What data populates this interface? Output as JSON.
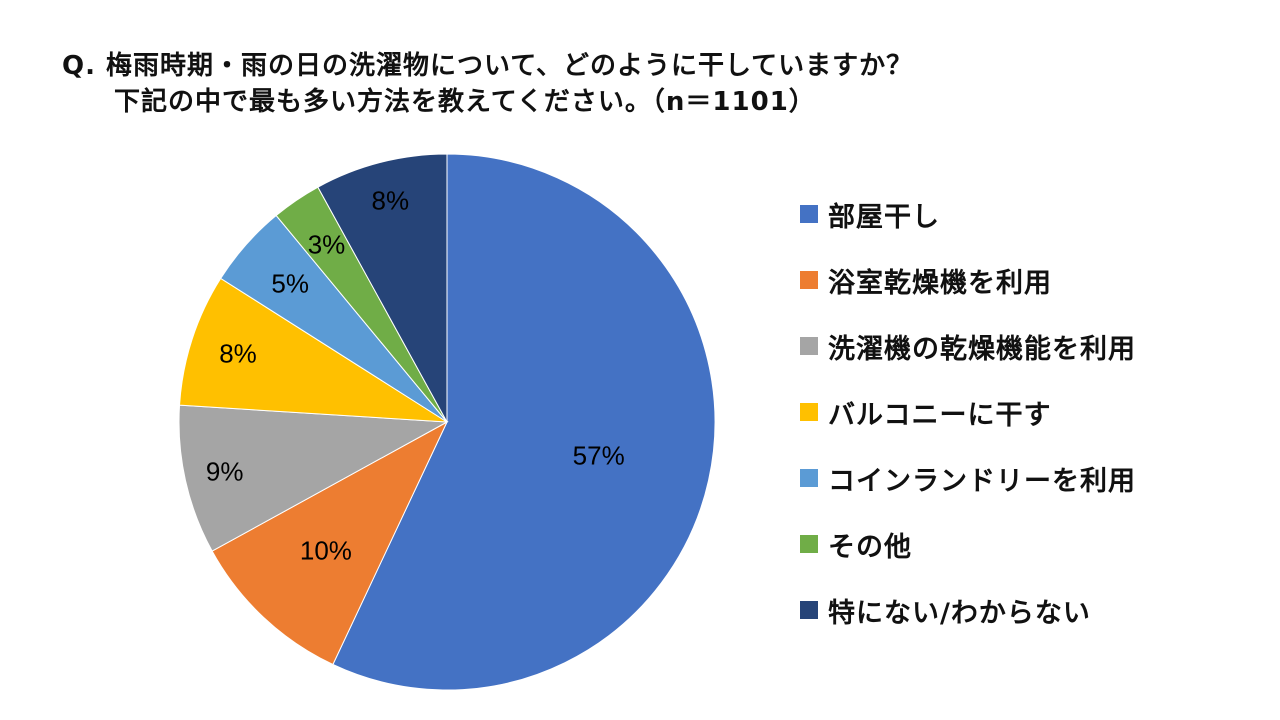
{
  "title": {
    "line1": "Q. 梅雨時期・雨の日の洗濯物について、どのように干していますか？",
    "line2": "下記の中で最も多い方法を教えてください。（n＝1101）"
  },
  "chart_data": {
    "type": "pie",
    "title": "Q. 梅雨時期・雨の日の洗濯物について、どのように干していますか？ 下記の中で最も多い方法を教えてください。（n＝1101）",
    "n": 1101,
    "start_angle": "top (12 o'clock), clockwise",
    "legend_position": "right",
    "categories": [
      "部屋干し",
      "浴室乾燥機を利用",
      "洗濯機の乾燥機能を利用",
      "バルコニーに干す",
      "コインランドリーを利用",
      "その他",
      "特にない/わからない"
    ],
    "values": [
      57,
      10,
      9,
      8,
      5,
      3,
      8
    ],
    "value_labels": [
      "57%",
      "10%",
      "9%",
      "8%",
      "5%",
      "3%",
      "8%"
    ],
    "colors": [
      "#4472C4",
      "#ED7D31",
      "#A5A5A5",
      "#FFC000",
      "#5B9BD5",
      "#70AD47",
      "#264478"
    ],
    "units": "%"
  },
  "legend": {
    "items": [
      {
        "label": "部屋干し",
        "color": "#4472C4"
      },
      {
        "label": "浴室乾燥機を利用",
        "color": "#ED7D31"
      },
      {
        "label": "洗濯機の乾燥機能を利用",
        "color": "#A5A5A5"
      },
      {
        "label": "バルコニーに干す",
        "color": "#FFC000"
      },
      {
        "label": "コインランドリーを利用",
        "color": "#5B9BD5"
      },
      {
        "label": "その他",
        "color": "#70AD47"
      },
      {
        "label": "特にない/わからない",
        "color": "#264478"
      }
    ]
  }
}
